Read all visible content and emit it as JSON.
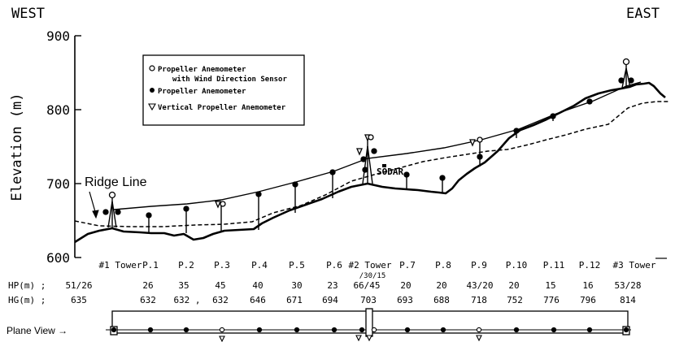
{
  "compass": {
    "west": "WEST",
    "east": "EAST"
  },
  "y_axis": {
    "label": "Elevation (m)",
    "ticks": [
      "900",
      "800",
      "700",
      "600"
    ]
  },
  "ridge_label": "Ridge Line",
  "sodar_label": "SODAR",
  "legend": {
    "open_circle_line1": "Propeller Anemometer",
    "open_circle_line2": "with Wind Direction Sensor",
    "filled_circle": "Propeller Anemometer",
    "triangle": "Vertical Propeller Anemometer"
  },
  "row_labels": {
    "hp": "HP(m) ;",
    "hg": "HG(m) ;",
    "plane": "Plane View →"
  },
  "stations": [
    {
      "name": "#1 Tower",
      "hp": "51/26",
      "hg": "635"
    },
    {
      "name": "P.1",
      "hp": "26",
      "hg": "632"
    },
    {
      "name": "P.2",
      "hp": "35",
      "hg": "632 ,"
    },
    {
      "name": "P.3",
      "hp": "45",
      "hg": "632"
    },
    {
      "name": "P.4",
      "hp": "40",
      "hg": "646"
    },
    {
      "name": "P.5",
      "hp": "30",
      "hg": "671"
    },
    {
      "name": "P.6",
      "hp": "23",
      "hg": "694"
    },
    {
      "name": "#2 Tower",
      "hp": "66/45",
      "hg": "703",
      "sub": "/30/15"
    },
    {
      "name": "P.7",
      "hp": "20",
      "hg": "693"
    },
    {
      "name": "P.8",
      "hp": "20",
      "hg": "688"
    },
    {
      "name": "P.9",
      "hp": "43/20",
      "hg": "718"
    },
    {
      "name": "P.10",
      "hp": "20",
      "hg": "752"
    },
    {
      "name": "P.11",
      "hp": "15",
      "hg": "776"
    },
    {
      "name": "P.12",
      "hp": "16",
      "hg": "796"
    },
    {
      "name": "#3 Tower",
      "hp": "53/28",
      "hg": "814"
    }
  ]
}
